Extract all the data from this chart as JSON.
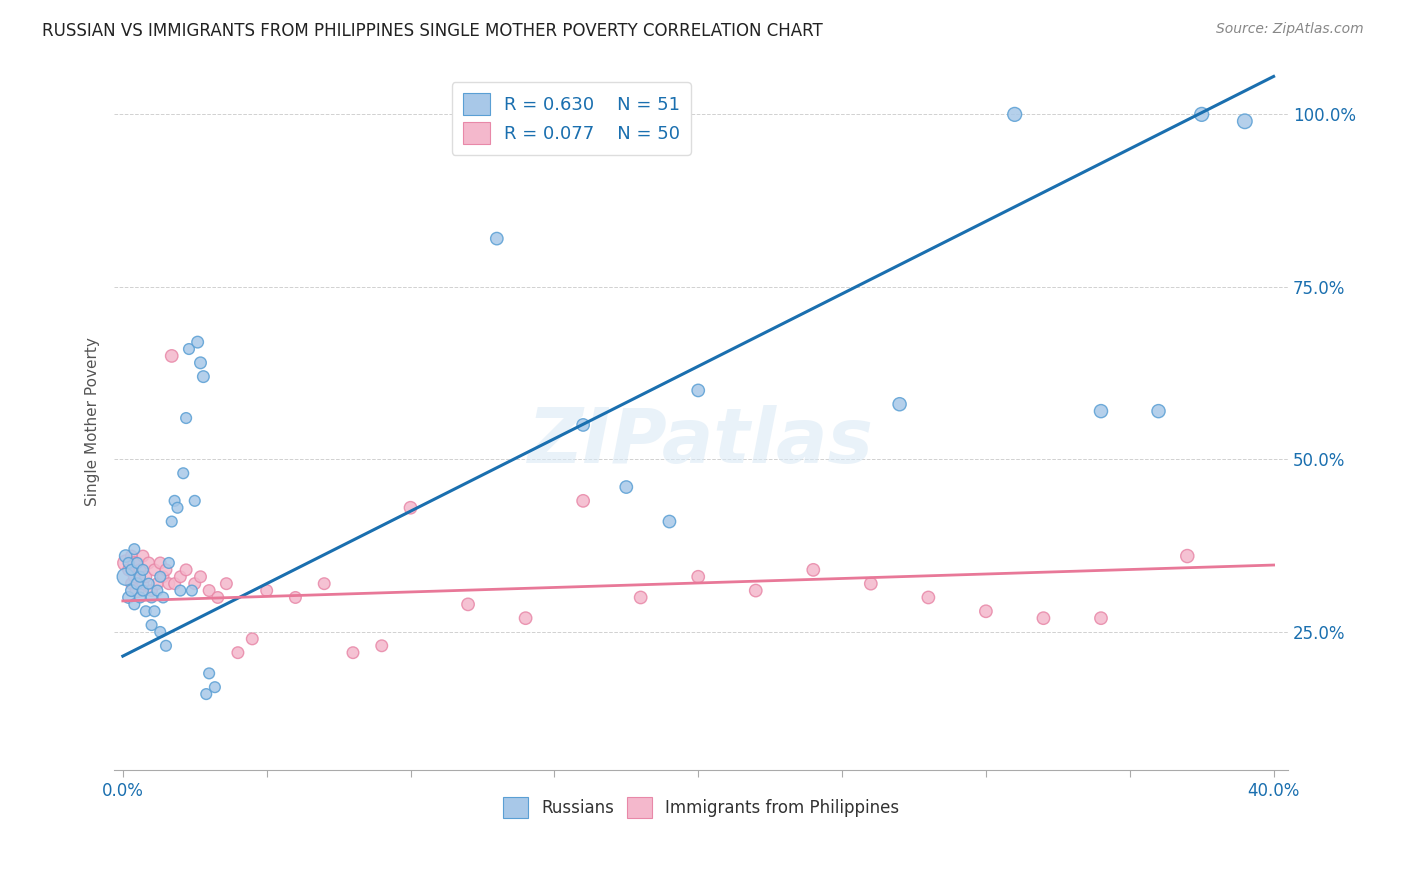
{
  "title": "RUSSIAN VS IMMIGRANTS FROM PHILIPPINES SINGLE MOTHER POVERTY CORRELATION CHART",
  "source": "Source: ZipAtlas.com",
  "ylabel": "Single Mother Poverty",
  "yticks": [
    0.25,
    0.5,
    0.75,
    1.0
  ],
  "ytick_labels": [
    "25.0%",
    "50.0%",
    "75.0%",
    "100.0%"
  ],
  "xticks": [
    0.0,
    0.05,
    0.1,
    0.15,
    0.2,
    0.25,
    0.3,
    0.35,
    0.4
  ],
  "xlim": [
    -0.003,
    0.405
  ],
  "ylim": [
    0.05,
    1.06
  ],
  "legend_blue_label": "Russians",
  "legend_pink_label": "Immigrants from Philippines",
  "r_blue": 0.63,
  "n_blue": 51,
  "r_pink": 0.077,
  "n_pink": 50,
  "blue_color": "#a8c8e8",
  "blue_edge_color": "#5a9fd4",
  "blue_line_color": "#1a6faf",
  "pink_color": "#f4b8cc",
  "pink_edge_color": "#e888a8",
  "pink_line_color": "#e87898",
  "watermark": "ZIPatlas",
  "blue_line_intercept": 0.215,
  "blue_line_slope": 2.1,
  "pink_line_intercept": 0.295,
  "pink_line_slope": 0.13,
  "blue_scatter_x": [
    0.001,
    0.001,
    0.002,
    0.002,
    0.003,
    0.003,
    0.004,
    0.004,
    0.005,
    0.005,
    0.006,
    0.006,
    0.007,
    0.007,
    0.008,
    0.009,
    0.01,
    0.01,
    0.011,
    0.012,
    0.013,
    0.013,
    0.014,
    0.015,
    0.016,
    0.017,
    0.018,
    0.019,
    0.02,
    0.021,
    0.022,
    0.023,
    0.024,
    0.025,
    0.026,
    0.027,
    0.028,
    0.029,
    0.03,
    0.032,
    0.13,
    0.16,
    0.175,
    0.19,
    0.2,
    0.27,
    0.31,
    0.34,
    0.36,
    0.375,
    0.39
  ],
  "blue_scatter_y": [
    0.33,
    0.36,
    0.3,
    0.35,
    0.31,
    0.34,
    0.29,
    0.37,
    0.32,
    0.35,
    0.3,
    0.33,
    0.31,
    0.34,
    0.28,
    0.32,
    0.26,
    0.3,
    0.28,
    0.31,
    0.25,
    0.33,
    0.3,
    0.23,
    0.35,
    0.41,
    0.44,
    0.43,
    0.31,
    0.48,
    0.56,
    0.66,
    0.31,
    0.44,
    0.67,
    0.64,
    0.62,
    0.16,
    0.19,
    0.17,
    0.82,
    0.55,
    0.46,
    0.41,
    0.6,
    0.58,
    1.0,
    0.57,
    0.57,
    1.0,
    0.99
  ],
  "blue_scatter_size": [
    150,
    80,
    70,
    60,
    70,
    60,
    60,
    60,
    70,
    60,
    60,
    60,
    60,
    60,
    60,
    60,
    60,
    60,
    60,
    60,
    60,
    60,
    60,
    60,
    60,
    60,
    60,
    60,
    60,
    60,
    60,
    60,
    60,
    60,
    70,
    70,
    70,
    60,
    60,
    60,
    80,
    80,
    80,
    80,
    80,
    90,
    100,
    90,
    90,
    100,
    110
  ],
  "pink_scatter_x": [
    0.001,
    0.002,
    0.003,
    0.003,
    0.004,
    0.004,
    0.005,
    0.005,
    0.006,
    0.007,
    0.007,
    0.008,
    0.009,
    0.01,
    0.011,
    0.012,
    0.013,
    0.014,
    0.015,
    0.016,
    0.017,
    0.018,
    0.02,
    0.022,
    0.025,
    0.027,
    0.03,
    0.033,
    0.036,
    0.04,
    0.045,
    0.05,
    0.06,
    0.07,
    0.08,
    0.09,
    0.1,
    0.12,
    0.14,
    0.16,
    0.18,
    0.2,
    0.22,
    0.24,
    0.26,
    0.28,
    0.3,
    0.32,
    0.34,
    0.37
  ],
  "pink_scatter_y": [
    0.35,
    0.34,
    0.32,
    0.36,
    0.33,
    0.35,
    0.31,
    0.35,
    0.34,
    0.32,
    0.36,
    0.33,
    0.35,
    0.31,
    0.34,
    0.32,
    0.35,
    0.33,
    0.34,
    0.32,
    0.65,
    0.32,
    0.33,
    0.34,
    0.32,
    0.33,
    0.31,
    0.3,
    0.32,
    0.22,
    0.24,
    0.31,
    0.3,
    0.32,
    0.22,
    0.23,
    0.43,
    0.29,
    0.27,
    0.44,
    0.3,
    0.33,
    0.31,
    0.34,
    0.32,
    0.3,
    0.28,
    0.27,
    0.27,
    0.36
  ],
  "pink_scatter_size": [
    130,
    70,
    70,
    70,
    70,
    80,
    100,
    70,
    70,
    70,
    70,
    70,
    70,
    70,
    70,
    70,
    70,
    70,
    70,
    70,
    80,
    70,
    70,
    70,
    70,
    70,
    70,
    70,
    70,
    70,
    70,
    70,
    70,
    70,
    70,
    70,
    80,
    80,
    80,
    80,
    80,
    80,
    80,
    80,
    80,
    80,
    80,
    80,
    80,
    90
  ]
}
